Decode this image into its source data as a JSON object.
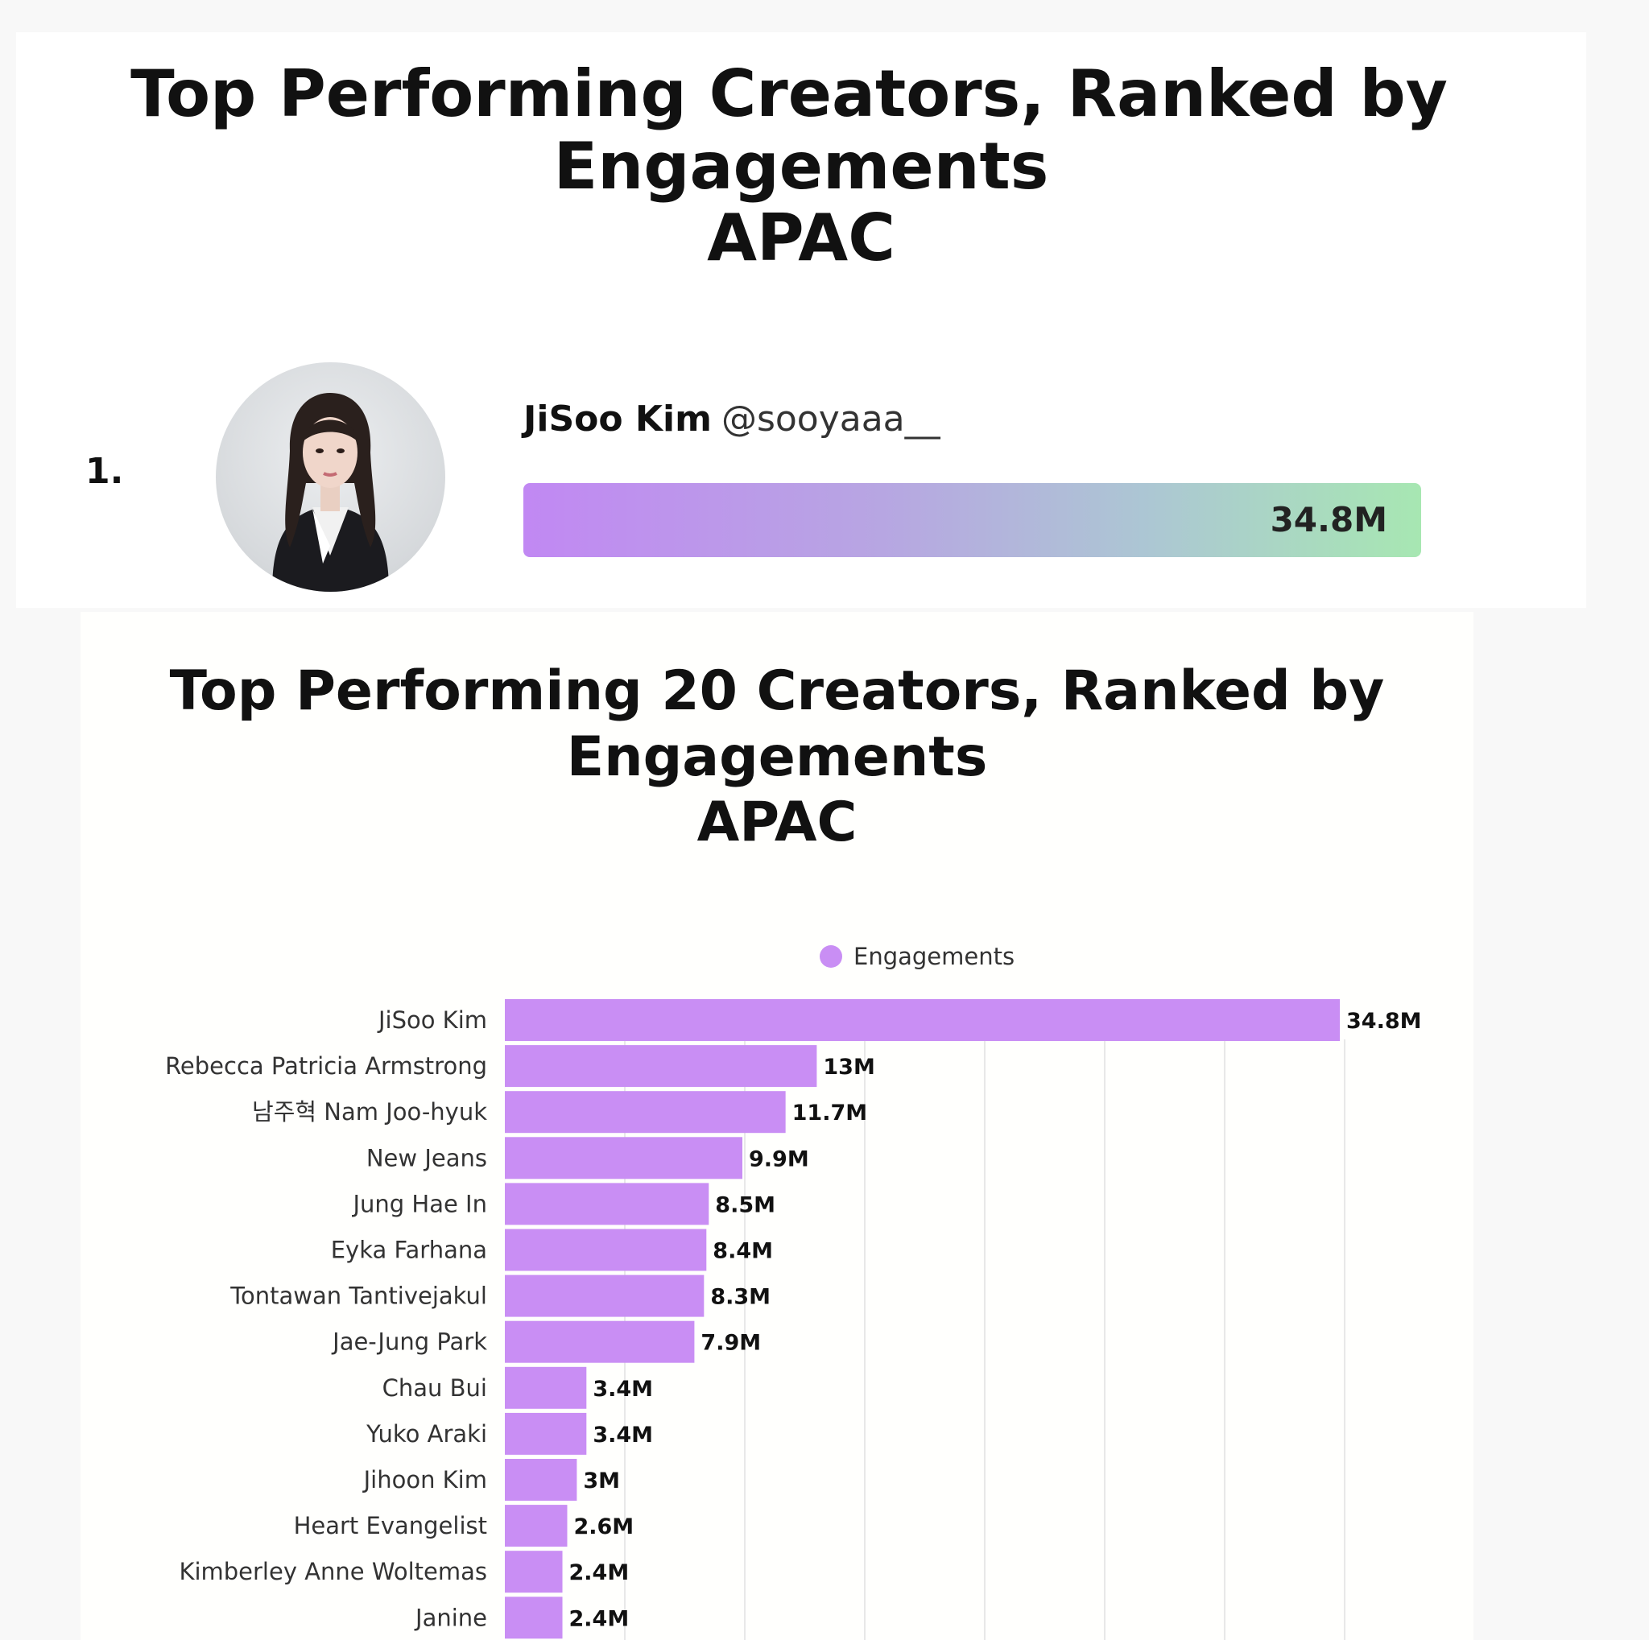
{
  "top_card": {
    "title_line1": "Top Performing Creators, Ranked by",
    "title_line2": "Engagements",
    "title_line3": "APAC",
    "rank": "1.",
    "name": "JiSoo Kim",
    "handle": "@sooyaaa__",
    "value_label": "34.8M"
  },
  "bottom_card": {
    "title_line1": "Top Performing 20 Creators, Ranked by",
    "title_line2": "Engagements",
    "title_line3": "APAC"
  },
  "colors": {
    "bar": "#c98ef4",
    "grid": "#e8e8e8",
    "hero_gradient_start": "#c188f3",
    "hero_gradient_end": "#a7e7b2"
  },
  "chart_data": {
    "type": "bar",
    "orientation": "horizontal",
    "legend": {
      "entries": [
        "Engagements"
      ],
      "position": "top"
    },
    "categories": [
      "JiSoo Kim",
      "Rebecca Patricia Armstrong",
      "남주혁 Nam Joo-hyuk",
      "New Jeans",
      "Jung Hae In",
      "Eyka Farhana",
      "Tontawan Tantivejakul",
      "Jae-Jung Park",
      "Chau Bui",
      "Yuko Araki",
      "Jihoon Kim",
      "Heart Evangelist",
      "Kimberley Anne  Woltemas",
      "Janine"
    ],
    "series": [
      {
        "name": "Engagements",
        "values": [
          34.8,
          13,
          11.7,
          9.9,
          8.5,
          8.4,
          8.3,
          7.9,
          3.4,
          3.4,
          3,
          2.6,
          2.4,
          2.4
        ],
        "labels": [
          "34.8M",
          "13M",
          "11.7M",
          "9.9M",
          "8.5M",
          "8.4M",
          "8.3M",
          "7.9M",
          "3.4M",
          "3.4M",
          "3M",
          "2.6M",
          "2.4M",
          "2.4M"
        ]
      }
    ],
    "xlim": [
      0,
      40
    ],
    "grid": true
  }
}
